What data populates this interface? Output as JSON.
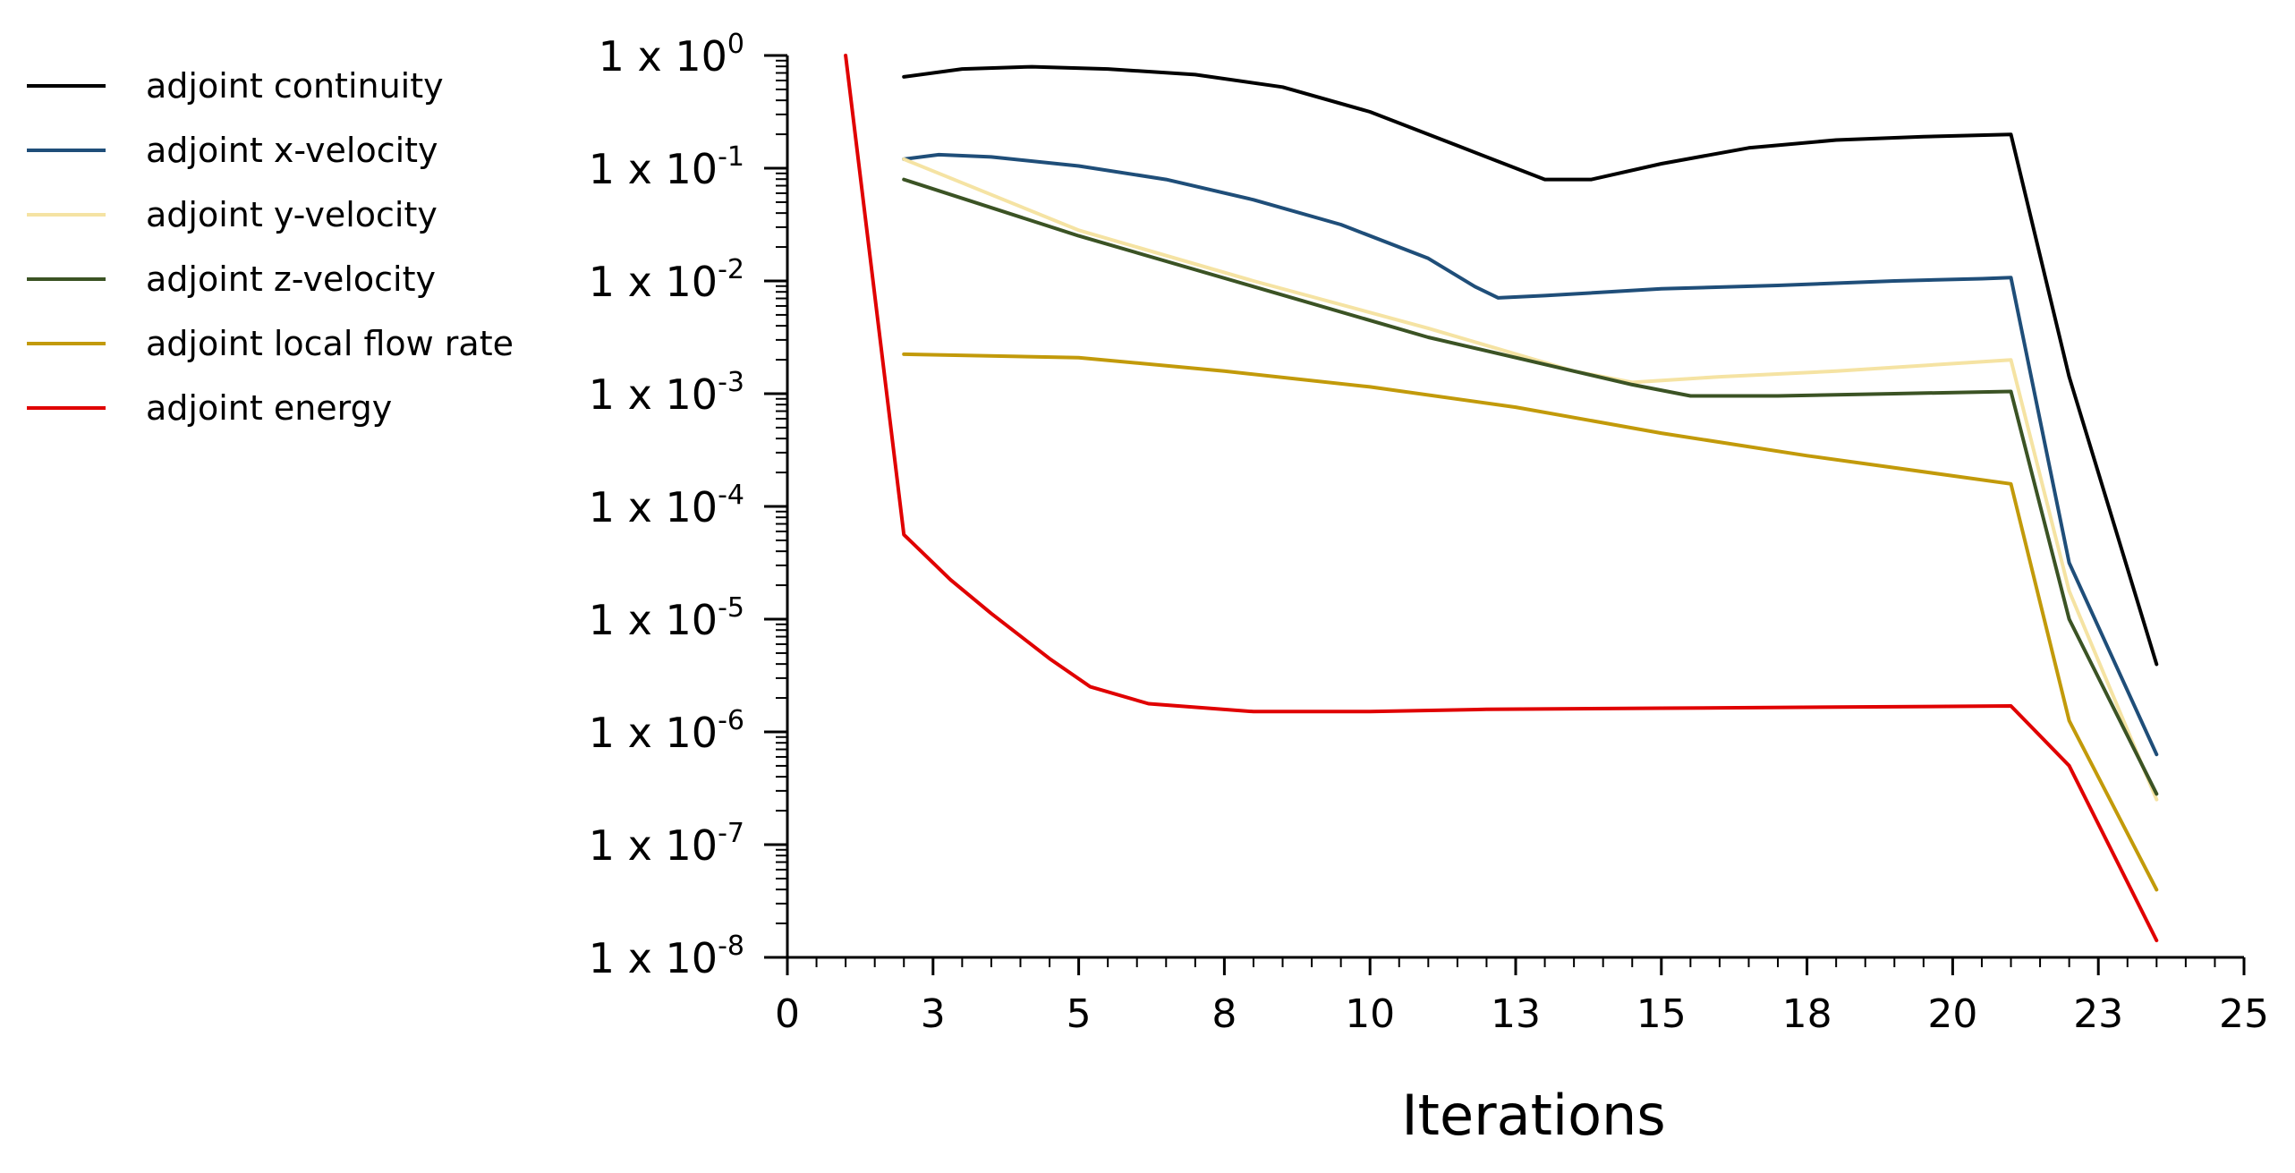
{
  "chart_data": {
    "type": "line",
    "title": "",
    "xlabel": "Iterations",
    "ylabel": "",
    "yscale": "log",
    "xlim": [
      0,
      25
    ],
    "ylim_exp": [
      -8,
      0
    ],
    "grid": false,
    "legend_position": "top-left, outside plot",
    "x_tick_values": [
      0,
      2.5,
      5,
      7.5,
      10,
      12.5,
      15,
      17.5,
      20,
      22.5,
      25
    ],
    "x_tick_labels": [
      "0",
      "3",
      "5",
      "8",
      "10",
      "13",
      "15",
      "18",
      "20",
      "23",
      "25"
    ],
    "y_ticks": [
      {
        "exp": 0,
        "base": "1 x 10",
        "sup": "0"
      },
      {
        "exp": -1,
        "base": "1 x 10",
        "sup": "-1"
      },
      {
        "exp": -2,
        "base": "1 x 10",
        "sup": "-2"
      },
      {
        "exp": -3,
        "base": "1 x 10",
        "sup": "-3"
      },
      {
        "exp": -4,
        "base": "1 x 10",
        "sup": "-4"
      },
      {
        "exp": -5,
        "base": "1 x 10",
        "sup": "-5"
      },
      {
        "exp": -6,
        "base": "1 x 10",
        "sup": "-6"
      },
      {
        "exp": -7,
        "base": "1 x 10",
        "sup": "-7"
      },
      {
        "exp": -8,
        "base": "1 x 10",
        "sup": "-8"
      }
    ],
    "series": [
      {
        "name": "adjoint continuity",
        "color": "#000000",
        "x": [
          2.0,
          3.0,
          4.2,
          5.5,
          7,
          8.5,
          10,
          11.5,
          12.5,
          13.0,
          13.8,
          15,
          16.5,
          18,
          19.5,
          21.0,
          22.0,
          23.5
        ],
        "logy": [
          -0.19,
          -0.12,
          -0.1,
          -0.12,
          -0.17,
          -0.28,
          -0.5,
          -0.8,
          -1.0,
          -1.1,
          -1.1,
          -0.96,
          -0.82,
          -0.75,
          -0.72,
          -0.7,
          -2.85,
          -5.4
        ]
      },
      {
        "name": "adjoint x-velocity",
        "color": "#1F4E79",
        "x": [
          2.0,
          2.6,
          3.5,
          5,
          6.5,
          8,
          9.5,
          11,
          11.8,
          12.2,
          13,
          15,
          17,
          19,
          20.5,
          21.0,
          22.0,
          23.5
        ],
        "logy": [
          -0.92,
          -0.88,
          -0.9,
          -0.98,
          -1.1,
          -1.28,
          -1.5,
          -1.8,
          -2.05,
          -2.15,
          -2.13,
          -2.07,
          -2.04,
          -2.0,
          -1.98,
          -1.97,
          -4.5,
          -6.2
        ]
      },
      {
        "name": "adjoint y-velocity",
        "color": "#F5E3A3",
        "x": [
          2.0,
          5,
          8,
          11,
          13.5,
          14.5,
          16,
          18,
          21.0,
          22.0,
          23.5
        ],
        "logy": [
          -0.92,
          -1.55,
          -2.0,
          -2.42,
          -2.8,
          -2.9,
          -2.85,
          -2.8,
          -2.7,
          -4.75,
          -6.6
        ]
      },
      {
        "name": "adjoint z-velocity",
        "color": "#3B5324",
        "x": [
          2.0,
          5,
          8,
          11,
          13.5,
          14.5,
          15.5,
          17,
          19,
          21.0,
          22.0,
          23.5
        ],
        "logy": [
          -1.1,
          -1.6,
          -2.05,
          -2.5,
          -2.8,
          -2.92,
          -3.02,
          -3.02,
          -3.0,
          -2.98,
          -5.0,
          -6.55
        ]
      },
      {
        "name": "adjoint local flow rate",
        "color": "#C29A0A",
        "x": [
          2.0,
          5,
          7.5,
          10,
          12.5,
          15,
          17.5,
          21.0,
          22.0,
          23.5
        ],
        "logy": [
          -2.65,
          -2.68,
          -2.8,
          -2.94,
          -3.12,
          -3.35,
          -3.55,
          -3.8,
          -5.9,
          -7.4
        ]
      },
      {
        "name": "adjoint energy",
        "color": "#E00000",
        "x": [
          1.0,
          2.0,
          2.8,
          3.5,
          4.5,
          5.2,
          6.2,
          8,
          10,
          12,
          15,
          18,
          21.0,
          22.0,
          23.5
        ],
        "logy": [
          0.0,
          -4.25,
          -4.65,
          -4.95,
          -5.35,
          -5.6,
          -5.75,
          -5.82,
          -5.82,
          -5.8,
          -5.79,
          -5.78,
          -5.77,
          -6.3,
          -7.85
        ]
      }
    ]
  }
}
